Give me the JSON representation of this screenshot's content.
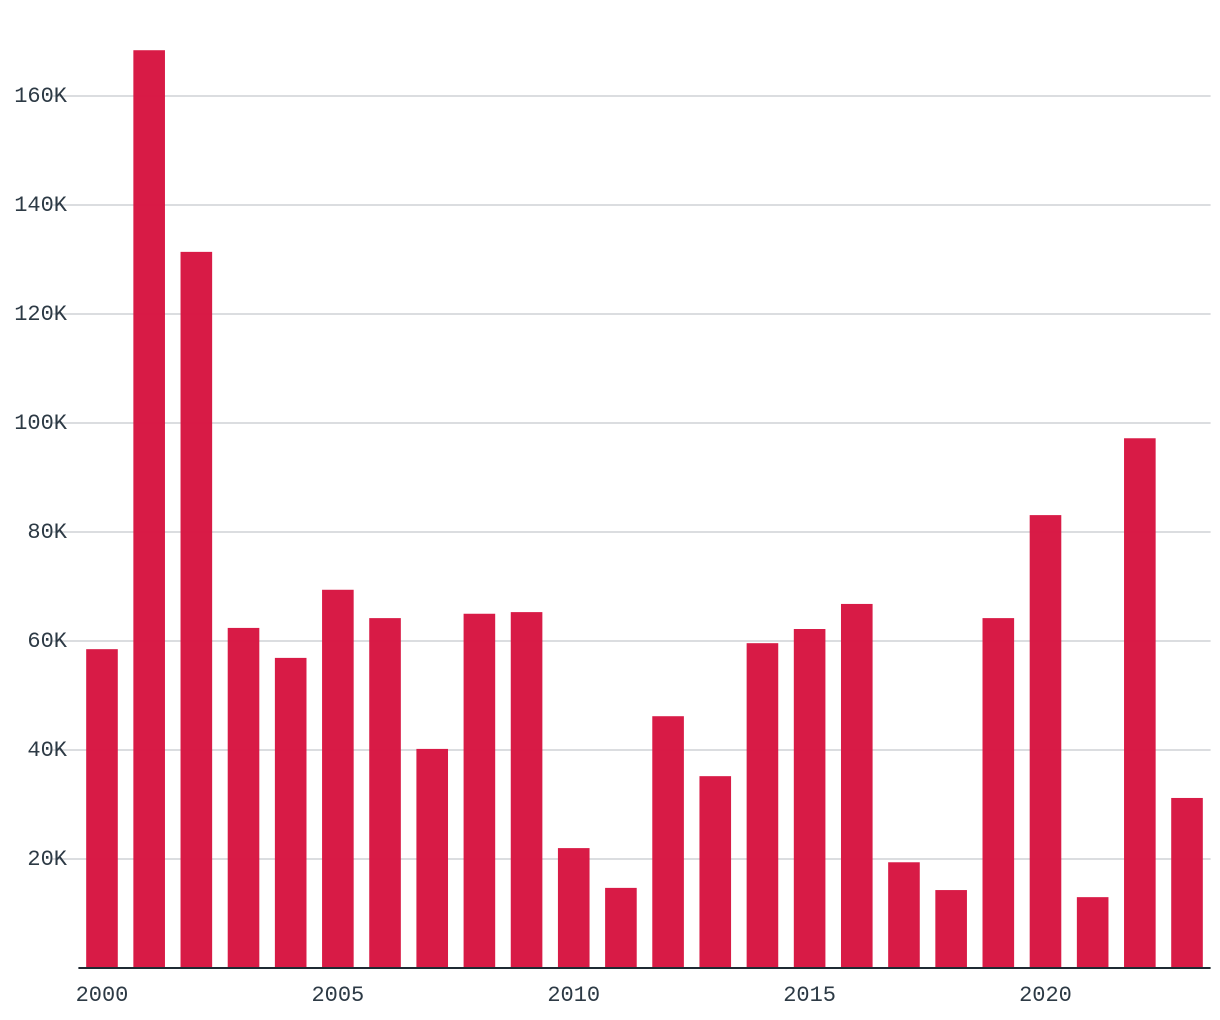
{
  "chart_data": {
    "type": "bar",
    "color": "#d71440",
    "grid": true,
    "x": [
      2000,
      2001,
      2002,
      2003,
      2004,
      2005,
      2006,
      2007,
      2008,
      2009,
      2010,
      2011,
      2012,
      2013,
      2014,
      2015,
      2016,
      2017,
      2018,
      2019,
      2020,
      2021,
      2022,
      2023
    ],
    "values": [
      58500,
      168400,
      131400,
      62400,
      56900,
      69400,
      64200,
      40200,
      65000,
      65300,
      22000,
      14700,
      46200,
      35200,
      59600,
      62200,
      66800,
      19400,
      14300,
      64200,
      83100,
      13000,
      97200,
      31200
    ],
    "xlim": [
      1999.5,
      2023.5
    ],
    "xticks": [
      2000,
      2005,
      2010,
      2015,
      2020
    ],
    "ylim": [
      0,
      170000
    ],
    "yticks": [
      {
        "value": 20000,
        "label": "20K"
      },
      {
        "value": 40000,
        "label": "40K"
      },
      {
        "value": 60000,
        "label": "60K"
      },
      {
        "value": 80000,
        "label": "80K"
      },
      {
        "value": 100000,
        "label": "100K"
      },
      {
        "value": 120000,
        "label": "120K"
      },
      {
        "value": 140000,
        "label": "140K"
      },
      {
        "value": 160000,
        "label": "160K"
      }
    ]
  }
}
